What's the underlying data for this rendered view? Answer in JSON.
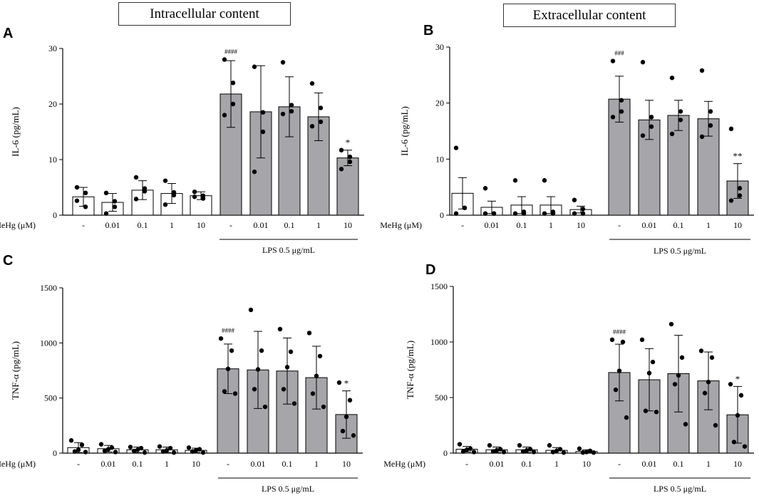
{
  "headers": {
    "intracellular": "Intracellular content",
    "extracellular": "Extracellular content"
  },
  "colors": {
    "control_bar": "#ffffff",
    "lps_bar": "#a6a6aa",
    "edge": "#000000"
  },
  "chart_data": [
    {
      "panel": "A",
      "type": "bar",
      "ylabel": "IL-6 (pg/mL)",
      "ylim": [
        0,
        30
      ],
      "yticks": [
        0,
        10,
        20,
        30
      ],
      "xaxis_label": "MeHg (μM)",
      "categories": [
        "-",
        "0.01",
        "0.1",
        "1",
        "10",
        "-",
        "0.01",
        "0.1",
        "1",
        "10"
      ],
      "groups": [
        "control",
        "control",
        "control",
        "control",
        "control",
        "LPS",
        "LPS",
        "LPS",
        "LPS",
        "LPS"
      ],
      "lps_label": "LPS 0.5 μg/mL",
      "values": [
        3.3,
        2.3,
        4.5,
        3.9,
        3.5,
        21.8,
        18.6,
        19.5,
        17.7,
        10.3
      ],
      "errors": [
        1.7,
        1.6,
        1.7,
        1.8,
        0.7,
        6.0,
        8.3,
        5.4,
        4.3,
        1.4
      ],
      "points": [
        [
          5,
          4,
          1.5,
          2.6
        ],
        [
          4,
          2.5,
          1.5,
          0.3
        ],
        [
          6.8,
          4.8,
          4.3,
          2.9
        ],
        [
          6.2,
          3.6,
          4.1,
          1.9
        ],
        [
          4.2,
          3.5,
          3,
          3.3
        ],
        [
          28,
          23.8,
          20,
          18
        ],
        [
          26.7,
          18.5,
          15,
          7.8
        ],
        [
          27.5,
          19.8,
          18.7,
          18.2
        ],
        [
          23.7,
          19.3,
          16.8,
          16
        ],
        [
          11.7,
          10.5,
          9.6,
          8.3
        ]
      ],
      "annotations": [
        {
          "index": 5,
          "text": "####"
        },
        {
          "index": 9,
          "text": "*"
        }
      ]
    },
    {
      "panel": "B",
      "type": "bar",
      "ylabel": "IL-6 (pg/mL)",
      "ylim": [
        0,
        30
      ],
      "yticks": [
        0,
        10,
        20,
        30
      ],
      "xaxis_label": "MeHg (μM)",
      "categories": [
        "-",
        "0.01",
        "0.1",
        "1",
        "10",
        "-",
        "0.01",
        "0.1",
        "1",
        "10"
      ],
      "groups": [
        "control",
        "control",
        "control",
        "control",
        "control",
        "LPS",
        "LPS",
        "LPS",
        "LPS",
        "LPS"
      ],
      "lps_label": "LPS 0.5 μg/mL",
      "values": [
        3.9,
        1.4,
        1.8,
        1.8,
        1.0,
        20.7,
        17.0,
        17.8,
        17.2,
        6.1
      ],
      "errors": [
        2.8,
        1.1,
        1.5,
        1.5,
        0.6,
        4.1,
        3.5,
        2.7,
        3.1,
        3.1
      ],
      "points": [
        [
          12,
          1.3,
          1.3,
          0.3
        ],
        [
          4.8,
          0.3,
          0.3,
          0.3
        ],
        [
          6.2,
          0.6,
          0.3,
          0.3
        ],
        [
          6.2,
          0.6,
          0.3,
          0.3
        ],
        [
          2.7,
          1.1,
          0.3,
          0.3
        ],
        [
          27.5,
          20.5,
          18.5,
          17.5
        ],
        [
          27.3,
          17.5,
          15.8,
          14.2
        ],
        [
          24.5,
          18.5,
          17,
          14.5
        ],
        [
          25.8,
          18.5,
          16,
          14
        ],
        [
          15.4,
          4.8,
          3.5,
          2.6
        ]
      ],
      "annotations": [
        {
          "index": 5,
          "text": "###"
        },
        {
          "index": 9,
          "text": "**"
        }
      ]
    },
    {
      "panel": "C",
      "type": "bar",
      "ylabel": "TNF-α (pg/mL)",
      "ylim": [
        0,
        1500
      ],
      "yticks": [
        0,
        500,
        1000,
        1500
      ],
      "xaxis_label": "MeHg (μM)",
      "categories": [
        "-",
        "0.01",
        "0.1",
        "1",
        "10",
        "-",
        "0.01",
        "0.1",
        "1",
        "10"
      ],
      "groups": [
        "control",
        "control",
        "control",
        "control",
        "control",
        "LPS",
        "LPS",
        "LPS",
        "LPS",
        "LPS"
      ],
      "lps_label": "LPS 0.5 μg/mL",
      "values": [
        50,
        40,
        30,
        30,
        25,
        765,
        755,
        745,
        685,
        350
      ],
      "errors": [
        45,
        30,
        25,
        25,
        20,
        225,
        350,
        300,
        285,
        215
      ],
      "points": [
        [
          115,
          75,
          30,
          15,
          10
        ],
        [
          80,
          50,
          35,
          20,
          10
        ],
        [
          55,
          45,
          30,
          20,
          5
        ],
        [
          60,
          45,
          25,
          15,
          5
        ],
        [
          50,
          35,
          25,
          15,
          5
        ],
        [
          1040,
          930,
          765,
          560,
          540
        ],
        [
          1300,
          930,
          760,
          580,
          420
        ],
        [
          1125,
          920,
          780,
          580,
          450
        ],
        [
          1090,
          880,
          700,
          540,
          420
        ],
        [
          640,
          480,
          330,
          200,
          160
        ]
      ],
      "annotations": [
        {
          "index": 5,
          "text": "####"
        },
        {
          "index": 9,
          "text": "*"
        }
      ]
    },
    {
      "panel": "D",
      "type": "bar",
      "ylabel": "TNF-α (pg/mL)",
      "ylim": [
        0,
        1500
      ],
      "yticks": [
        0,
        500,
        1000,
        1500
      ],
      "xaxis_label": "MeHg (μM)",
      "categories": [
        "-",
        "0.01",
        "0.1",
        "1",
        "10",
        "-",
        "0.01",
        "0.1",
        "1",
        "10"
      ],
      "groups": [
        "control",
        "control",
        "control",
        "control",
        "control",
        "LPS",
        "LPS",
        "LPS",
        "LPS",
        "LPS"
      ],
      "lps_label": "LPS 0.5 μg/mL",
      "values": [
        35,
        30,
        30,
        25,
        15,
        725,
        660,
        715,
        650,
        345
      ],
      "errors": [
        25,
        25,
        25,
        25,
        15,
        255,
        280,
        345,
        260,
        255
      ],
      "points": [
        [
          80,
          40,
          30,
          15,
          10
        ],
        [
          70,
          35,
          25,
          15,
          10
        ],
        [
          70,
          35,
          25,
          15,
          10
        ],
        [
          70,
          35,
          20,
          10,
          5
        ],
        [
          40,
          20,
          10,
          5,
          5
        ],
        [
          1020,
          1000,
          740,
          570,
          320
        ],
        [
          1020,
          820,
          720,
          380,
          370
        ],
        [
          1160,
          860,
          700,
          620,
          260
        ],
        [
          920,
          860,
          640,
          540,
          250
        ],
        [
          620,
          520,
          340,
          100,
          60
        ]
      ],
      "annotations": [
        {
          "index": 5,
          "text": "####"
        },
        {
          "index": 9,
          "text": "*"
        }
      ]
    }
  ]
}
